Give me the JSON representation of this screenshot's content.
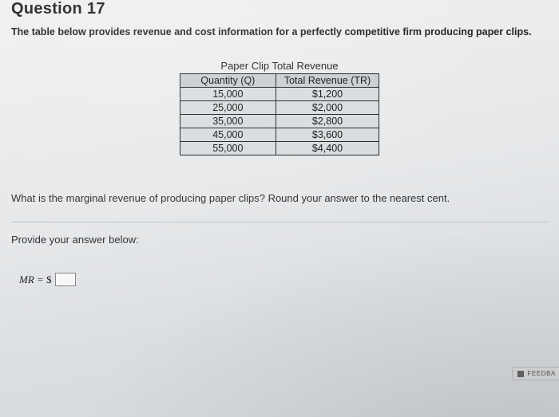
{
  "heading": "Question 17",
  "intro": "The table below provides revenue and cost information for a perfectly competitive firm producing paper clips.",
  "table": {
    "title": "Paper Clip Total Revenue",
    "columns": [
      "Quantity (Q)",
      "Total Revenue (TR)"
    ],
    "rows": [
      [
        "15,000",
        "$1,200"
      ],
      [
        "25,000",
        "$2,000"
      ],
      [
        "35,000",
        "$2,800"
      ],
      [
        "45,000",
        "$3,600"
      ],
      [
        "55,000",
        "$4,400"
      ]
    ],
    "border_color": "#222222",
    "header_bg": "#c9cdd0",
    "cell_bg": "#d8dcde",
    "font_size_pt": 12
  },
  "question_text": "What is the marginal revenue of producing paper clips? Round your answer to the nearest cent.",
  "provide_label": "Provide your answer below:",
  "answer": {
    "prefix_var": "MR",
    "equals": "=",
    "currency": "$",
    "value": "",
    "placeholder": ""
  },
  "feedback_label": "FEEDBA",
  "colors": {
    "page_bg": "#e6e8ea",
    "text": "#222222",
    "separator": "#bfc3c7"
  }
}
